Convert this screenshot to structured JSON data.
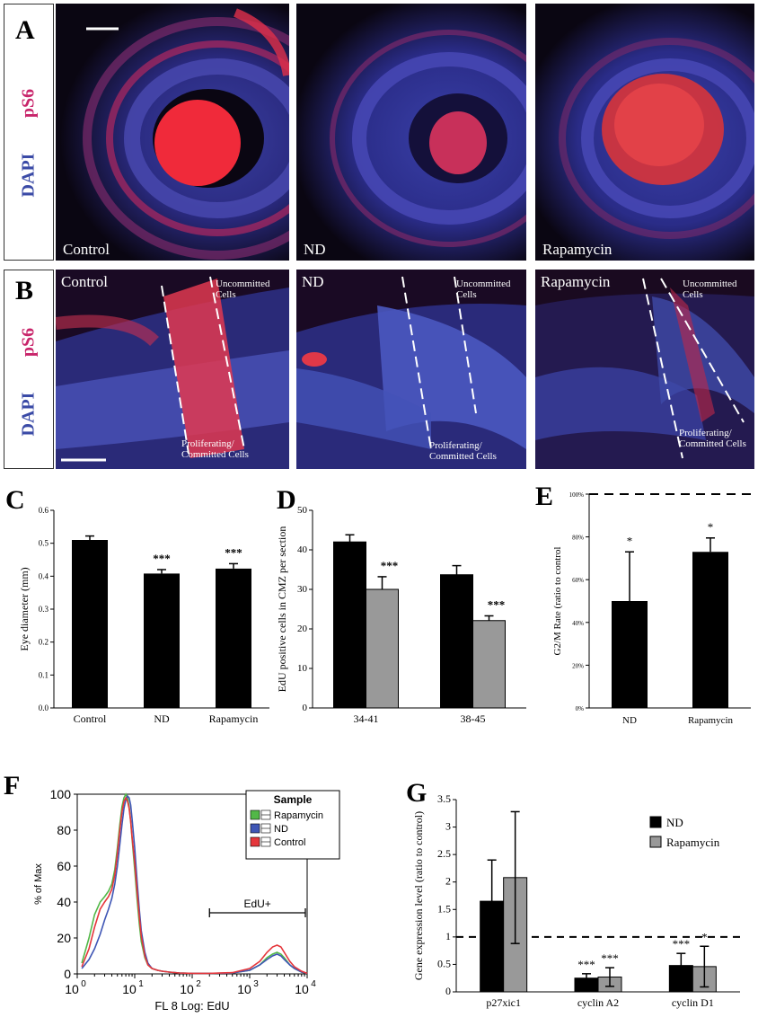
{
  "panel_A": {
    "label": "A",
    "stain_top": "pS6",
    "stain_bottom": "DAPI",
    "images": [
      "Control",
      "ND",
      "Rapamycin"
    ]
  },
  "panel_B": {
    "label": "B",
    "stain_top": "pS6",
    "stain_bottom": "DAPI",
    "images": [
      "Control",
      "ND",
      "Rapamycin"
    ],
    "annot_top": [
      "Uncommitted",
      "Cells"
    ],
    "annot_bottom": [
      "Proliferating/",
      "Committed Cells"
    ]
  },
  "colors": {
    "pS6": "#c8246a",
    "DAPI": "#3a4aa6",
    "bar_black": "#000000",
    "bar_gray": "#999999"
  },
  "chart_data": [
    {
      "panel": "C",
      "type": "bar",
      "ylabel": "Eye diameter (mm)",
      "categories": [
        "Control",
        "ND",
        "Rapamycin"
      ],
      "values": [
        0.51,
        0.408,
        0.423
      ],
      "errors": [
        0.012,
        0.012,
        0.015
      ],
      "annotations": [
        "",
        "***",
        "***"
      ],
      "ylim": [
        0,
        0.6
      ],
      "yticks": [
        "0.0",
        "0.1",
        "0.2",
        "0.3",
        "0.4",
        "0.5",
        "0.6"
      ]
    },
    {
      "panel": "D",
      "type": "bar",
      "ylabel": "EdU positive cells in CMZ per section",
      "categories": [
        "34-41",
        "38-45"
      ],
      "series": [
        {
          "color": "#000000",
          "values": [
            42,
            33.7
          ],
          "errors": [
            1.8,
            2.3
          ]
        },
        {
          "color": "#999999",
          "values": [
            30,
            22.1
          ],
          "errors": [
            3.2,
            1.2
          ]
        }
      ],
      "annotations": [
        "***",
        "***"
      ],
      "ylim": [
        0,
        50
      ],
      "yticks": [
        "0",
        "10",
        "20",
        "30",
        "40",
        "50"
      ]
    },
    {
      "panel": "E",
      "type": "bar",
      "ylabel": "G2/M Rate (ratio to control",
      "categories": [
        "ND",
        "Rapamycin"
      ],
      "values": [
        0.5,
        0.73
      ],
      "errors": [
        0.23,
        0.065
      ],
      "annotations": [
        "*",
        "*"
      ],
      "reference_line": 1.0,
      "ylim": [
        0,
        1.0
      ],
      "yticks": [
        "0%",
        "20%",
        "40%",
        "60%",
        "80%",
        "100%"
      ]
    },
    {
      "panel": "F",
      "type": "line",
      "xlabel": "FL 8 Log: EdU",
      "ylabel": "% of Max",
      "xscale": "log",
      "xlim": [
        1,
        10000
      ],
      "ylim": [
        0,
        100
      ],
      "xticks": [
        "10",
        "10",
        "10",
        "10",
        "10"
      ],
      "xtick_exponents": [
        "0",
        "1",
        "2",
        "3",
        "4"
      ],
      "yticks": [
        "0",
        "20",
        "40",
        "60",
        "80",
        "100"
      ],
      "legend_title": "Sample",
      "legend": [
        "Rapamycin",
        "ND",
        "Control"
      ],
      "gate_label": "EdU+",
      "gate_range": [
        200,
        10000
      ],
      "series": [
        {
          "name": "Rapamycin",
          "color": "#52b848",
          "x": [
            1.2,
            1.6,
            2,
            2.5,
            3,
            3.5,
            4,
            4.5,
            5,
            5.5,
            6,
            6.5,
            7,
            7.5,
            8,
            8.5,
            9,
            10,
            11,
            12,
            13,
            15,
            17,
            20,
            25,
            30,
            40,
            60,
            100,
            200,
            500,
            1000,
            1500,
            2000,
            2500,
            3000,
            3500,
            4000,
            5000,
            6000,
            8000,
            10000
          ],
          "y": [
            6,
            20,
            33,
            40,
            43,
            46,
            50,
            58,
            70,
            83,
            93,
            98,
            100,
            98,
            93,
            85,
            75,
            58,
            42,
            28,
            18,
            9,
            5,
            3,
            2,
            1.5,
            1,
            0.5,
            0.3,
            0.3,
            0.5,
            2,
            5,
            9,
            11,
            12,
            11,
            9,
            5,
            3,
            1,
            0.3
          ]
        },
        {
          "name": "ND",
          "color": "#3f56b5",
          "x": [
            1.2,
            1.6,
            2,
            2.5,
            3,
            3.5,
            4,
            4.5,
            5,
            5.5,
            6,
            6.5,
            7,
            7.5,
            8,
            8.5,
            9,
            10,
            11,
            12,
            13,
            15,
            17,
            20,
            25,
            30,
            40,
            60,
            100,
            200,
            500,
            1000,
            1500,
            2000,
            2500,
            3000,
            3500,
            4000,
            5000,
            6000,
            8000,
            10000
          ],
          "y": [
            3,
            8,
            14,
            22,
            30,
            36,
            42,
            50,
            60,
            72,
            83,
            92,
            97,
            99,
            98,
            94,
            86,
            70,
            52,
            36,
            24,
            12,
            6,
            3,
            2,
            1.5,
            1,
            0.5,
            0.3,
            0.3,
            0.5,
            2,
            5,
            8,
            10,
            11,
            10,
            8,
            5,
            3,
            1,
            0.3
          ]
        },
        {
          "name": "Control",
          "color": "#e5363b",
          "x": [
            1.2,
            1.6,
            2,
            2.5,
            3,
            3.5,
            4,
            4.5,
            5,
            5.5,
            6,
            6.5,
            7,
            7.5,
            8,
            8.5,
            9,
            10,
            11,
            12,
            13,
            15,
            17,
            20,
            25,
            30,
            40,
            60,
            100,
            200,
            500,
            1000,
            1500,
            2000,
            2500,
            3000,
            3500,
            4000,
            5000,
            6000,
            8000,
            10000
          ],
          "y": [
            4,
            14,
            26,
            36,
            40,
            43,
            47,
            55,
            67,
            80,
            90,
            96,
            98,
            96,
            92,
            85,
            76,
            62,
            46,
            32,
            21,
            10,
            5,
            3,
            2,
            1.5,
            1,
            0.5,
            0.3,
            0.3,
            0.7,
            3,
            7,
            12,
            15,
            16,
            15,
            12,
            7,
            4,
            1.5,
            0.3
          ]
        }
      ]
    },
    {
      "panel": "G",
      "type": "bar",
      "ylabel": "Gene expression level (ratio to control)",
      "categories": [
        "p27xic1",
        "cyclin A2",
        "cyclin D1"
      ],
      "series": [
        {
          "name": "ND",
          "color": "#000000",
          "values": [
            1.65,
            0.25,
            0.48
          ],
          "errors": [
            0.75,
            0.08,
            0.22
          ]
        },
        {
          "name": "Rapamycin",
          "color": "#999999",
          "values": [
            2.08,
            0.27,
            0.46
          ],
          "errors": [
            1.2,
            0.17,
            0.37
          ]
        }
      ],
      "annotations": [
        [
          "",
          ""
        ],
        [
          "***",
          "***"
        ],
        [
          "***",
          "*"
        ]
      ],
      "reference_line": 1.0,
      "ylim": [
        0,
        3.5
      ],
      "yticks": [
        "0",
        "0.5",
        "1",
        "1.5",
        "2",
        "2.5",
        "3",
        "3.5"
      ]
    }
  ]
}
